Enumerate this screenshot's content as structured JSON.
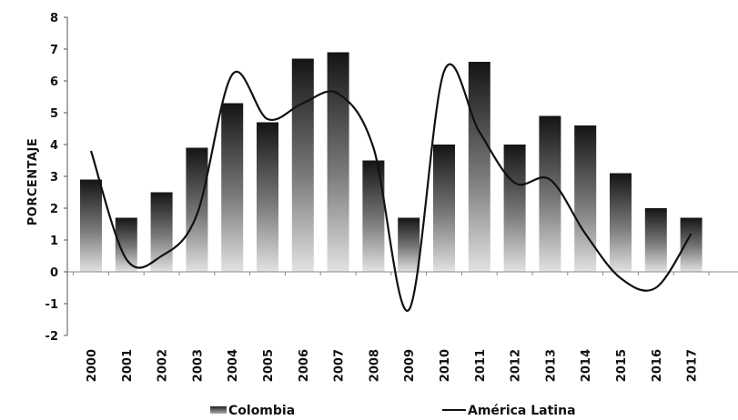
{
  "chart_data": {
    "type": "bar",
    "title": "",
    "xlabel": "",
    "ylabel": "PORCENTAJE",
    "ylim": [
      -2,
      8
    ],
    "yticks": [
      8,
      7,
      6,
      5,
      4,
      3,
      2,
      1,
      0,
      -1,
      -2
    ],
    "categories": [
      "2000",
      "2001",
      "2002",
      "2003",
      "2004",
      "2005",
      "2006",
      "2007",
      "2008",
      "2009",
      "2010",
      "2011",
      "2012",
      "2013",
      "2014",
      "2015",
      "2016",
      "2017"
    ],
    "series": [
      {
        "name": "Colombia",
        "type": "bar",
        "values": [
          2.9,
          1.7,
          2.5,
          3.9,
          5.3,
          4.7,
          6.7,
          6.9,
          3.5,
          1.7,
          4.0,
          6.6,
          4.0,
          4.9,
          4.6,
          3.1,
          2.0,
          1.7
        ]
      },
      {
        "name": "América Latina",
        "type": "line",
        "values": [
          3.8,
          0.4,
          0.5,
          1.8,
          6.2,
          4.8,
          5.3,
          5.6,
          3.9,
          -1.2,
          6.3,
          4.4,
          2.8,
          2.9,
          1.2,
          -0.2,
          -0.5,
          1.2
        ]
      }
    ],
    "grid": false,
    "legend": "bottom",
    "colors": {
      "bar_dark": "#161616",
      "bar_light": "#dcdcdc",
      "line": "#111111"
    }
  }
}
